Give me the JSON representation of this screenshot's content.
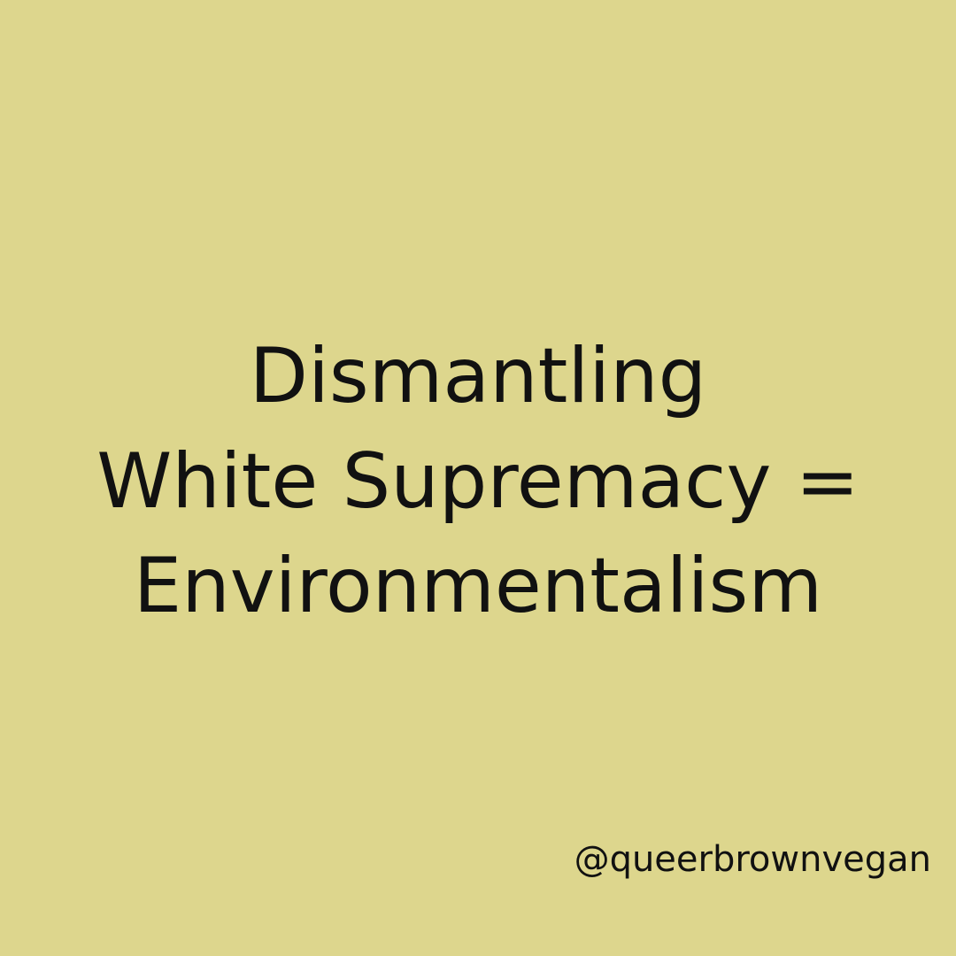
{
  "headline": {
    "line_1": "Dismantling",
    "line_2": "White Supremacy =",
    "line_3": "Environmentalism"
  },
  "handle": "@queerbrownvegan",
  "colors": {
    "background": "#ddd68d",
    "text": "#111111"
  }
}
